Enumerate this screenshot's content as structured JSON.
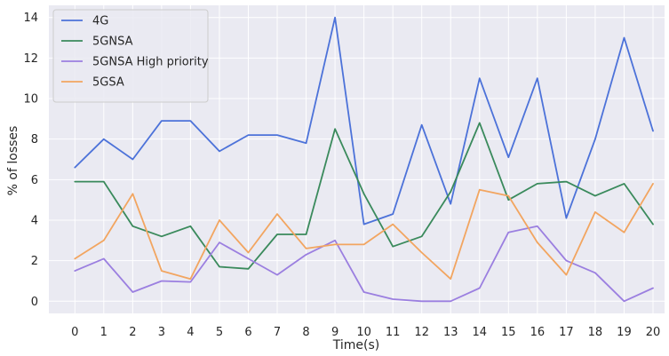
{
  "chart_data": {
    "type": "line",
    "title": "",
    "xlabel": "Time(s)",
    "ylabel": "% of losses",
    "x": [
      0,
      1,
      2,
      3,
      4,
      5,
      6,
      7,
      8,
      9,
      10,
      11,
      12,
      13,
      14,
      15,
      16,
      17,
      18,
      19,
      20
    ],
    "xlim": [
      -0.9,
      20.4
    ],
    "ylim": [
      -0.6,
      14.6
    ],
    "yticks": [
      0,
      2,
      4,
      6,
      8,
      10,
      12,
      14
    ],
    "grid": true,
    "legend_position": "top-left",
    "series": [
      {
        "name": "4G",
        "color": "#4c72d9",
        "values": [
          6.6,
          8.0,
          7.0,
          8.9,
          8.9,
          7.4,
          8.2,
          8.2,
          7.8,
          14.0,
          3.8,
          4.3,
          8.7,
          4.8,
          11.0,
          7.1,
          11.0,
          4.1,
          8.0,
          13.0,
          8.4
        ]
      },
      {
        "name": "5GNSA",
        "color": "#3a8a5c",
        "values": [
          5.9,
          5.9,
          3.7,
          3.2,
          3.7,
          1.7,
          1.6,
          3.3,
          3.3,
          8.5,
          5.3,
          2.7,
          3.2,
          5.4,
          8.8,
          5.0,
          5.8,
          5.9,
          5.2,
          5.8,
          3.8
        ]
      },
      {
        "name": "5GNSA High priority",
        "color": "#9b7fe0",
        "values": [
          1.5,
          2.1,
          0.45,
          1.0,
          0.95,
          2.9,
          2.1,
          1.3,
          2.3,
          3.0,
          0.45,
          0.1,
          0.0,
          0.0,
          0.65,
          3.4,
          3.7,
          2.0,
          1.4,
          0.0,
          0.65
        ]
      },
      {
        "name": "5GSA",
        "color": "#f2a560",
        "values": [
          2.1,
          3.0,
          5.3,
          1.5,
          1.1,
          4.0,
          2.4,
          4.3,
          2.6,
          2.8,
          2.8,
          3.8,
          2.4,
          1.1,
          5.5,
          5.2,
          2.9,
          1.3,
          4.4,
          3.4,
          5.8
        ]
      }
    ]
  }
}
